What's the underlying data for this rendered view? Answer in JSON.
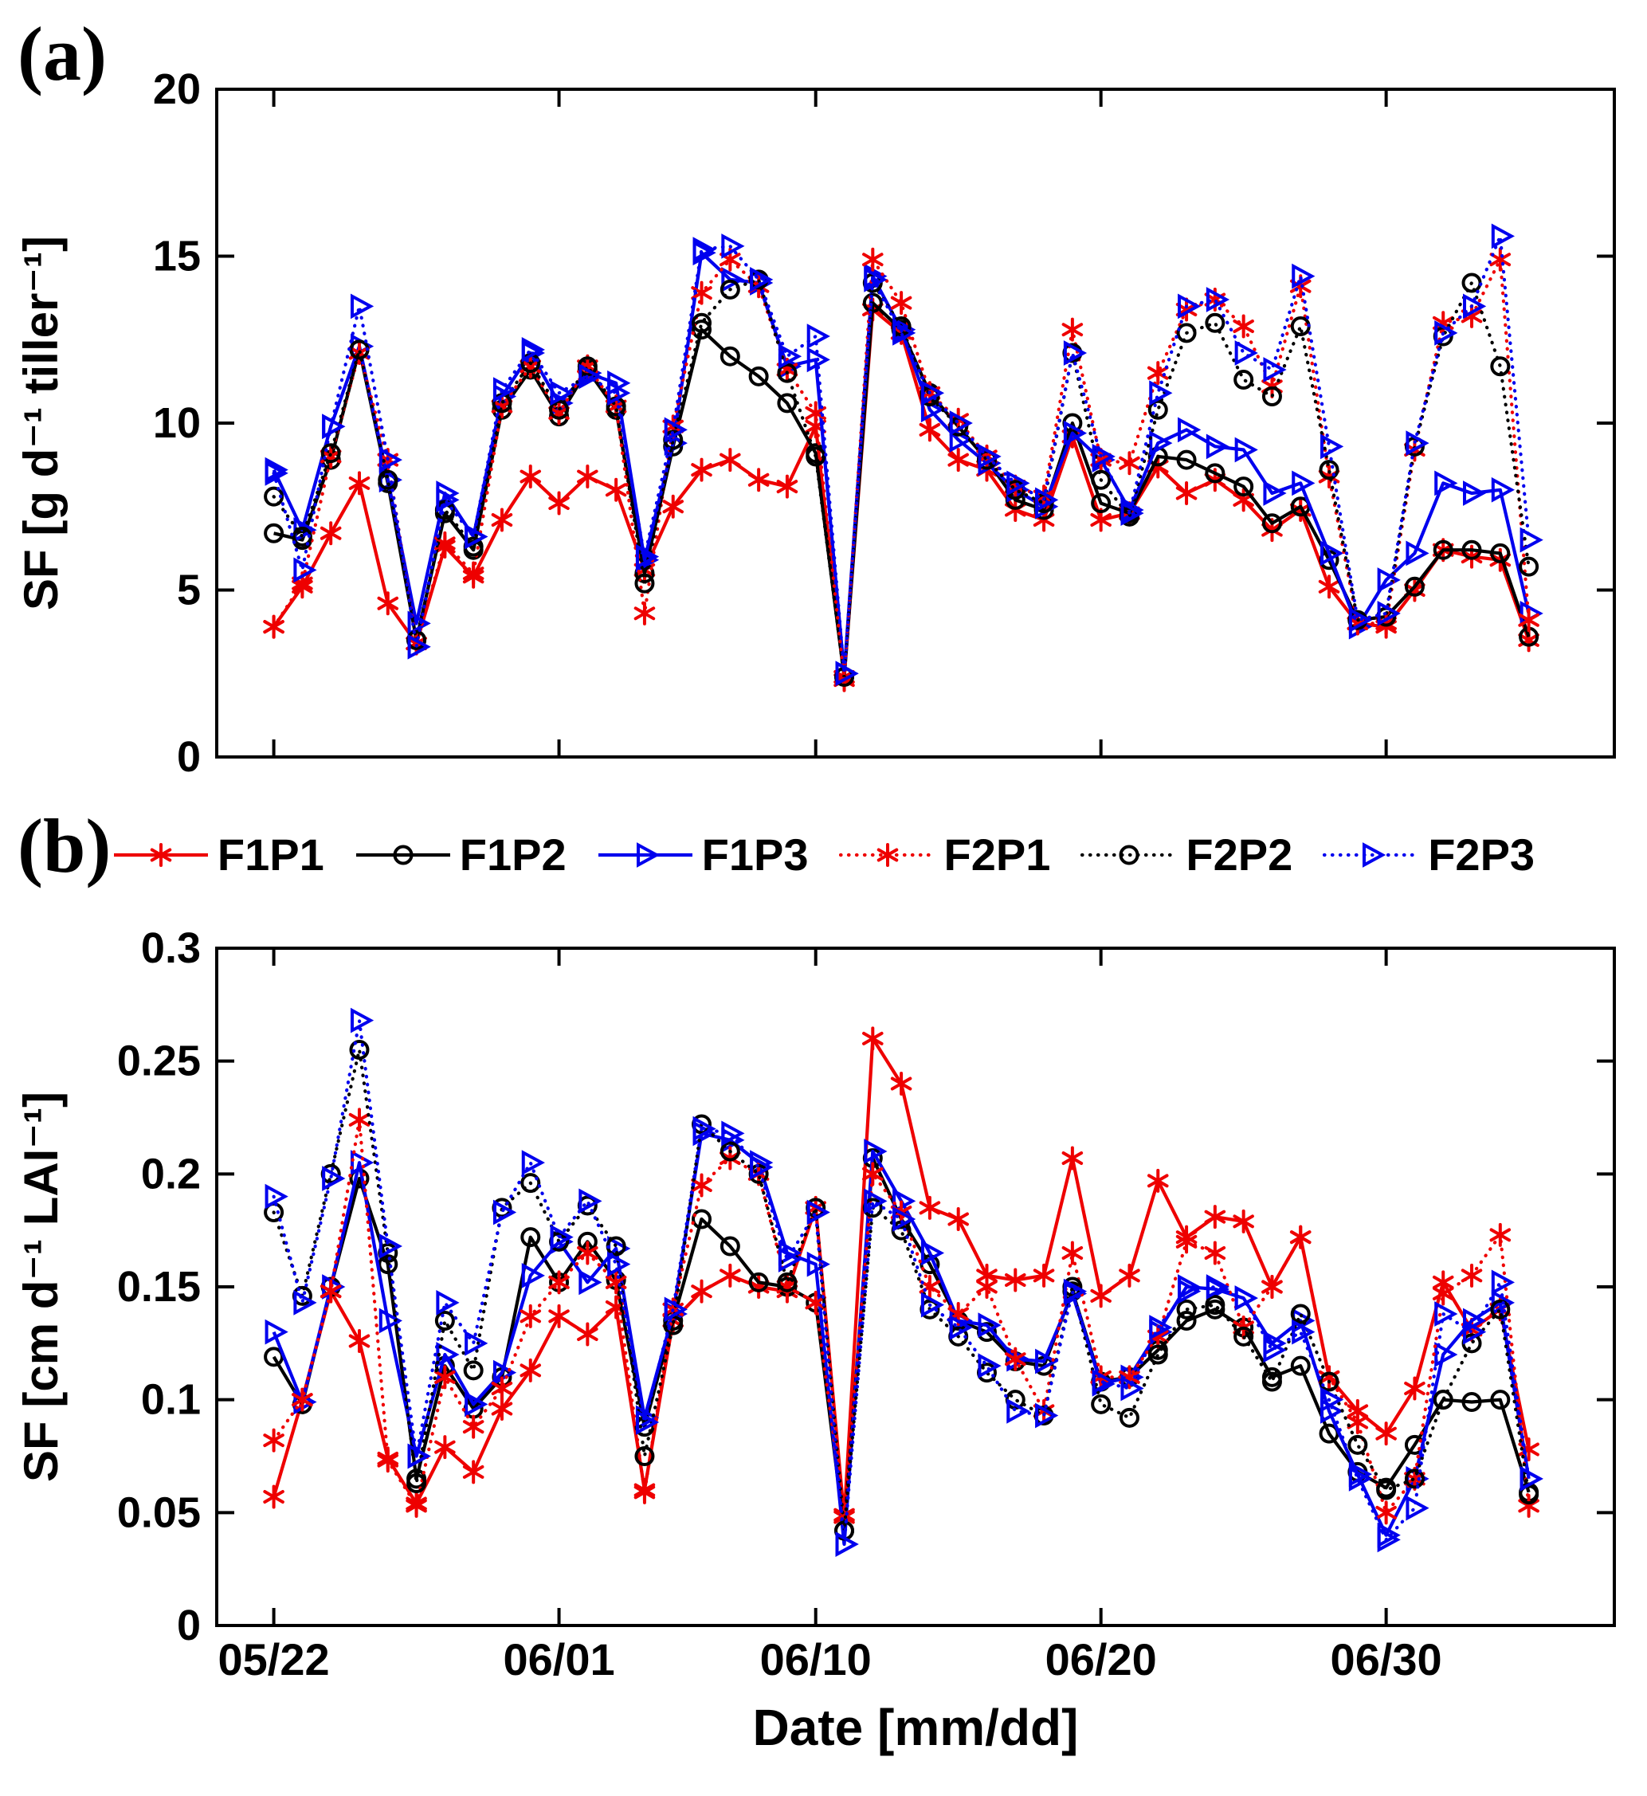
{
  "figure": {
    "panel_a_label": "(a)",
    "panel_b_label": "(b)",
    "x_axis_label": "Date [mm/dd]",
    "background": "#ffffff",
    "axis_color": "#000000"
  },
  "series_meta": [
    {
      "id": "F1P1",
      "label": "F1P1",
      "color": "#ee0000",
      "line": "solid",
      "marker": "asterisk"
    },
    {
      "id": "F1P2",
      "label": "F1P2",
      "color": "#000000",
      "line": "solid",
      "marker": "circle"
    },
    {
      "id": "F1P3",
      "label": "F1P3",
      "color": "#0000ee",
      "line": "solid",
      "marker": "triangle-right"
    },
    {
      "id": "F2P1",
      "label": "F2P1",
      "color": "#ee0000",
      "line": "dotted",
      "marker": "asterisk"
    },
    {
      "id": "F2P2",
      "label": "F2P2",
      "color": "#000000",
      "line": "dotted",
      "marker": "circle"
    },
    {
      "id": "F2P3",
      "label": "F2P3",
      "color": "#0000ee",
      "line": "dotted",
      "marker": "triangle-right"
    }
  ],
  "legend": {
    "entries": [
      "F1P1",
      "F1P2",
      "F1P3",
      "F2P1",
      "F2P2",
      "F2P3"
    ]
  },
  "chart_data": [
    {
      "type": "line",
      "panel": "a",
      "ylabel": "SF [g d⁻¹ tiller⁻¹]",
      "ylim": [
        0,
        20
      ],
      "yticks": [
        0,
        5,
        10,
        15,
        20
      ],
      "ytick_labels": [
        "0",
        "5",
        "10",
        "15",
        "20"
      ],
      "grid": false,
      "x_dates": [
        "05/22",
        "05/23",
        "05/24",
        "05/25",
        "05/26",
        "05/27",
        "05/28",
        "05/29",
        "05/30",
        "05/31",
        "06/01",
        "06/02",
        "06/03",
        "06/04",
        "06/05",
        "06/06",
        "06/07",
        "06/08",
        "06/09",
        "06/10",
        "06/11",
        "06/12",
        "06/13",
        "06/14",
        "06/15",
        "06/16",
        "06/17",
        "06/18",
        "06/19",
        "06/20",
        "06/21",
        "06/22",
        "06/23",
        "06/24",
        "06/25",
        "06/26",
        "06/27",
        "06/28",
        "06/29",
        "06/30",
        "07/01",
        "07/02",
        "07/03",
        "07/04",
        "07/05"
      ],
      "xtick_dates": [
        "05/22",
        "06/01",
        "06/10",
        "06/20",
        "06/30"
      ],
      "xtick_indices": [
        0,
        10,
        19,
        29,
        39
      ],
      "show_x_labels": false,
      "series": [
        {
          "name": "F1P1",
          "values": [
            3.9,
            5.1,
            6.7,
            8.2,
            4.6,
            3.4,
            6.3,
            5.4,
            7.1,
            8.4,
            7.6,
            8.4,
            8.0,
            5.6,
            7.5,
            8.6,
            8.9,
            8.3,
            8.1,
            9.9,
            2.4,
            13.4,
            12.7,
            9.8,
            8.9,
            8.6,
            7.4,
            7.1,
            9.6,
            7.1,
            7.3,
            8.7,
            7.9,
            8.3,
            7.7,
            6.8,
            7.4,
            5.1,
            4.0,
            3.9,
            5.0,
            6.2,
            6.0,
            5.9,
            3.5
          ]
        },
        {
          "name": "F1P2",
          "values": [
            6.7,
            6.5,
            8.9,
            12.2,
            8.2,
            3.5,
            7.3,
            6.2,
            10.4,
            11.6,
            10.2,
            11.6,
            10.4,
            5.5,
            9.3,
            12.8,
            12.0,
            11.4,
            10.6,
            9.1,
            2.4,
            13.6,
            12.8,
            10.9,
            9.9,
            8.9,
            7.7,
            7.4,
            10.0,
            7.6,
            7.3,
            9.0,
            8.9,
            8.5,
            8.1,
            7.0,
            7.5,
            5.9,
            4.1,
            4.2,
            5.1,
            6.2,
            6.2,
            6.1,
            3.6
          ]
        },
        {
          "name": "F1P3",
          "values": [
            8.6,
            6.8,
            9.9,
            12.3,
            8.3,
            4.0,
            7.9,
            6.6,
            10.8,
            12.1,
            10.6,
            11.5,
            11.2,
            5.9,
            9.4,
            15.1,
            14.3,
            14.2,
            11.7,
            11.9,
            2.5,
            14.4,
            12.8,
            10.4,
            9.5,
            8.8,
            8.0,
            7.5,
            9.7,
            8.9,
            7.4,
            9.4,
            9.8,
            9.3,
            9.2,
            7.9,
            8.2,
            6.1,
            3.9,
            5.3,
            6.1,
            8.2,
            7.9,
            8.0,
            4.3
          ]
        },
        {
          "name": "F2P1",
          "values": [
            3.9,
            5.2,
            9.0,
            12.1,
            8.9,
            3.4,
            6.4,
            5.5,
            10.5,
            11.7,
            10.3,
            11.7,
            10.5,
            4.3,
            9.9,
            13.9,
            14.9,
            14.1,
            11.6,
            10.3,
            2.3,
            14.9,
            13.6,
            10.9,
            10.1,
            9.0,
            8.1,
            7.8,
            12.8,
            8.9,
            8.8,
            11.5,
            13.4,
            13.7,
            12.9,
            11.1,
            14.1,
            8.4,
            4.0,
            4.0,
            9.2,
            13.0,
            13.2,
            14.9,
            4.1
          ]
        },
        {
          "name": "F2P2",
          "values": [
            7.8,
            6.6,
            9.1,
            12.2,
            8.3,
            3.5,
            7.4,
            6.3,
            10.6,
            11.8,
            10.4,
            11.7,
            10.5,
            5.2,
            9.5,
            13.0,
            14.0,
            14.3,
            11.5,
            9.0,
            2.4,
            14.2,
            12.9,
            10.8,
            9.9,
            8.9,
            8.0,
            7.6,
            12.1,
            8.3,
            7.2,
            10.4,
            12.7,
            13.0,
            11.3,
            10.8,
            12.9,
            8.6,
            4.1,
            4.2,
            9.3,
            12.6,
            14.2,
            11.7,
            5.7
          ]
        },
        {
          "name": "F2P3",
          "values": [
            8.5,
            5.6,
            9.9,
            13.5,
            8.9,
            3.3,
            7.7,
            6.6,
            11.0,
            12.2,
            10.9,
            11.4,
            10.9,
            6.0,
            9.8,
            15.2,
            15.3,
            14.3,
            12.0,
            12.6,
            2.5,
            14.3,
            12.7,
            10.9,
            10.0,
            9.0,
            8.2,
            7.7,
            12.1,
            9.0,
            7.3,
            10.9,
            13.5,
            13.7,
            12.1,
            11.6,
            14.4,
            9.3,
            4.1,
            4.3,
            9.4,
            12.7,
            13.5,
            15.6,
            6.5
          ]
        }
      ]
    },
    {
      "type": "line",
      "panel": "b",
      "ylabel": "SF [cm d⁻¹ LAI⁻¹]",
      "ylim": [
        0,
        0.3
      ],
      "yticks": [
        0,
        0.05,
        0.1,
        0.15,
        0.2,
        0.25,
        0.3
      ],
      "ytick_labels": [
        "0",
        "0.05",
        "0.1",
        "0.15",
        "0.2",
        "0.25",
        "0.3"
      ],
      "grid": false,
      "x_dates": [
        "05/22",
        "05/23",
        "05/24",
        "05/25",
        "05/26",
        "05/27",
        "05/28",
        "05/29",
        "05/30",
        "05/31",
        "06/01",
        "06/02",
        "06/03",
        "06/04",
        "06/05",
        "06/06",
        "06/07",
        "06/08",
        "06/09",
        "06/10",
        "06/11",
        "06/12",
        "06/13",
        "06/14",
        "06/15",
        "06/16",
        "06/17",
        "06/18",
        "06/19",
        "06/20",
        "06/21",
        "06/22",
        "06/23",
        "06/24",
        "06/25",
        "06/26",
        "06/27",
        "06/28",
        "06/29",
        "06/30",
        "07/01",
        "07/02",
        "07/03",
        "07/04",
        "07/05"
      ],
      "xtick_dates": [
        "05/22",
        "06/01",
        "06/10",
        "06/20",
        "06/30"
      ],
      "xtick_indices": [
        0,
        10,
        19,
        29,
        39
      ],
      "show_x_labels": true,
      "series": [
        {
          "name": "F1P1",
          "values": [
            0.057,
            0.1,
            0.148,
            0.126,
            0.074,
            0.054,
            0.079,
            0.068,
            0.096,
            0.113,
            0.137,
            0.129,
            0.141,
            0.06,
            0.135,
            0.148,
            0.155,
            0.15,
            0.148,
            0.185,
            0.048,
            0.26,
            0.24,
            0.185,
            0.18,
            0.155,
            0.153,
            0.155,
            0.207,
            0.146,
            0.155,
            0.197,
            0.172,
            0.181,
            0.179,
            0.15,
            0.172,
            0.11,
            0.095,
            0.085,
            0.105,
            0.152,
            0.131,
            0.14,
            0.078
          ]
        },
        {
          "name": "F1P2",
          "values": [
            0.119,
            0.098,
            0.15,
            0.198,
            0.16,
            0.065,
            0.115,
            0.096,
            0.11,
            0.172,
            0.152,
            0.17,
            0.153,
            0.088,
            0.135,
            0.18,
            0.168,
            0.152,
            0.15,
            0.143,
            0.042,
            0.207,
            0.18,
            0.16,
            0.135,
            0.13,
            0.117,
            0.115,
            0.148,
            0.108,
            0.11,
            0.122,
            0.135,
            0.14,
            0.132,
            0.11,
            0.115,
            0.085,
            0.068,
            0.061,
            0.08,
            0.1,
            0.099,
            0.1,
            0.059
          ]
        },
        {
          "name": "F1P3",
          "values": [
            0.13,
            0.099,
            0.15,
            0.205,
            0.135,
            0.075,
            0.12,
            0.098,
            0.112,
            0.155,
            0.17,
            0.152,
            0.167,
            0.092,
            0.138,
            0.218,
            0.215,
            0.205,
            0.165,
            0.16,
            0.036,
            0.21,
            0.188,
            0.165,
            0.135,
            0.133,
            0.118,
            0.117,
            0.147,
            0.107,
            0.11,
            0.13,
            0.15,
            0.149,
            0.145,
            0.125,
            0.135,
            0.095,
            0.067,
            0.04,
            0.065,
            0.12,
            0.135,
            0.143,
            0.065
          ]
        },
        {
          "name": "F2P1",
          "values": [
            0.082,
            0.1,
            0.148,
            0.224,
            0.073,
            0.053,
            0.11,
            0.088,
            0.105,
            0.137,
            0.152,
            0.165,
            0.152,
            0.059,
            0.14,
            0.195,
            0.207,
            0.2,
            0.15,
            0.143,
            0.049,
            0.2,
            0.183,
            0.15,
            0.138,
            0.15,
            0.118,
            0.095,
            0.165,
            0.11,
            0.11,
            0.128,
            0.17,
            0.165,
            0.132,
            0.15,
            0.172,
            0.11,
            0.09,
            0.05,
            0.065,
            0.147,
            0.155,
            0.173,
            0.053
          ]
        },
        {
          "name": "F2P2",
          "values": [
            0.183,
            0.146,
            0.2,
            0.255,
            0.165,
            0.063,
            0.135,
            0.113,
            0.185,
            0.196,
            0.17,
            0.186,
            0.168,
            0.075,
            0.133,
            0.222,
            0.21,
            0.2,
            0.152,
            0.185,
            0.042,
            0.185,
            0.175,
            0.14,
            0.128,
            0.112,
            0.1,
            0.093,
            0.15,
            0.098,
            0.092,
            0.12,
            0.14,
            0.142,
            0.128,
            0.108,
            0.138,
            0.108,
            0.08,
            0.06,
            0.065,
            0.1,
            0.125,
            0.14,
            0.058
          ]
        },
        {
          "name": "F2P3",
          "values": [
            0.19,
            0.143,
            0.198,
            0.268,
            0.168,
            0.075,
            0.143,
            0.125,
            0.183,
            0.205,
            0.172,
            0.188,
            0.16,
            0.09,
            0.14,
            0.22,
            0.218,
            0.203,
            0.162,
            0.183,
            0.036,
            0.188,
            0.18,
            0.142,
            0.132,
            0.115,
            0.095,
            0.093,
            0.148,
            0.108,
            0.105,
            0.132,
            0.148,
            0.15,
            0.145,
            0.122,
            0.13,
            0.1,
            0.065,
            0.038,
            0.052,
            0.138,
            0.13,
            0.152,
            0.065
          ]
        }
      ]
    }
  ]
}
